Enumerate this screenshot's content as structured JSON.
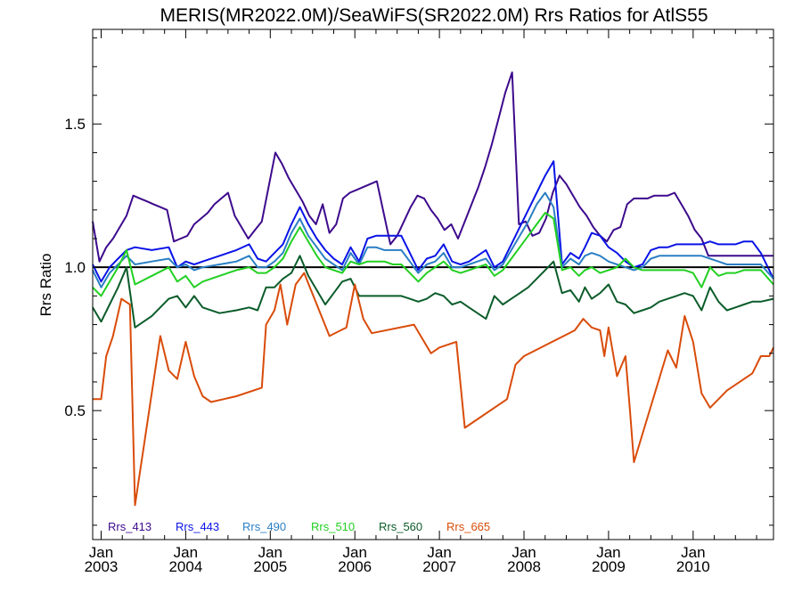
{
  "chart_data": {
    "type": "line",
    "title": "MERIS(MR2022.0M)/SeaWiFS(SR2022.0M)  Rrs Ratios for AtlS55",
    "ylabel": "Rrs Ratio",
    "xlabel": "",
    "xlim": [
      2002.9,
      2010.95
    ],
    "ylim": [
      0.05,
      1.83
    ],
    "x_ticks": [
      {
        "month": "Jan",
        "year": "2003",
        "x": 2003.0
      },
      {
        "month": "Jan",
        "year": "2004",
        "x": 2004.0
      },
      {
        "month": "Jan",
        "year": "2005",
        "x": 2005.0
      },
      {
        "month": "Jan",
        "year": "2006",
        "x": 2006.0
      },
      {
        "month": "Jan",
        "year": "2007",
        "x": 2007.0
      },
      {
        "month": "Jan",
        "year": "2008",
        "x": 2008.0
      },
      {
        "month": "Jan",
        "year": "2009",
        "x": 2009.0
      },
      {
        "month": "Jan",
        "year": "2010",
        "x": 2010.0
      }
    ],
    "y_ticks": [
      {
        "label": "0.5",
        "value": 0.5
      },
      {
        "label": "1.0",
        "value": 1.0
      },
      {
        "label": "1.5",
        "value": 1.5
      }
    ],
    "reference_line": {
      "value": 1.0,
      "color": "#000000"
    },
    "legend_placement": "bottom-left",
    "grid": false,
    "series": [
      {
        "name": "Rrs_413",
        "color": "#3d0a8c",
        "x": [
          2002.9,
          2002.98,
          2003.06,
          2003.14,
          2003.22,
          2003.3,
          2003.38,
          2003.46,
          2003.54,
          2003.62,
          2003.7,
          2003.78,
          2003.86,
          2003.94,
          2004.02,
          2004.1,
          2004.18,
          2004.26,
          2004.34,
          2004.42,
          2004.5,
          2004.58,
          2004.66,
          2004.74,
          2004.82,
          2004.9,
          2004.98,
          2005.06,
          2005.14,
          2005.22,
          2005.3,
          2005.38,
          2005.46,
          2005.54,
          2005.62,
          2005.7,
          2005.78,
          2005.86,
          2005.94,
          2006.02,
          2006.1,
          2006.18,
          2006.26,
          2006.34,
          2006.42,
          2006.5,
          2006.58,
          2006.66,
          2006.74,
          2006.82,
          2006.9,
          2006.98,
          2007.06,
          2007.14,
          2007.22,
          2007.3,
          2007.38,
          2007.46,
          2007.54,
          2007.62,
          2007.7,
          2007.78,
          2007.86,
          2007.94,
          2008.02,
          2008.1,
          2008.18,
          2008.26,
          2008.34,
          2008.42,
          2008.5,
          2008.58,
          2008.66,
          2008.74,
          2008.82,
          2008.9,
          2008.98,
          2009.06,
          2009.14,
          2009.22,
          2009.3,
          2009.38,
          2009.46,
          2009.54,
          2009.62,
          2009.7,
          2009.78,
          2009.86,
          2009.94,
          2010.02,
          2010.1,
          2010.18,
          2010.26,
          2010.34,
          2010.42,
          2010.5,
          2010.58,
          2010.66,
          2010.74,
          2010.82,
          2010.9,
          2010.95
        ],
        "values": [
          1.16,
          1.02,
          1.07,
          1.1,
          1.14,
          1.18,
          1.25,
          1.24,
          1.23,
          1.22,
          1.21,
          1.2,
          1.09,
          1.1,
          1.11,
          1.15,
          1.17,
          1.19,
          1.22,
          1.24,
          1.26,
          1.18,
          1.14,
          1.1,
          1.13,
          1.16,
          1.28,
          1.4,
          1.36,
          1.31,
          1.27,
          1.23,
          1.18,
          1.15,
          1.22,
          1.12,
          1.15,
          1.24,
          1.26,
          1.27,
          1.28,
          1.29,
          1.3,
          1.19,
          1.08,
          1.11,
          1.16,
          1.21,
          1.25,
          1.24,
          1.2,
          1.17,
          1.13,
          1.15,
          1.1,
          1.16,
          1.22,
          1.28,
          1.35,
          1.43,
          1.52,
          1.61,
          1.68,
          1.15,
          1.16,
          1.11,
          1.12,
          1.17,
          1.26,
          1.32,
          1.29,
          1.25,
          1.21,
          1.18,
          1.14,
          1.11,
          1.09,
          1.13,
          1.14,
          1.22,
          1.24,
          1.24,
          1.24,
          1.25,
          1.25,
          1.25,
          1.26,
          1.22,
          1.18,
          1.13,
          1.1,
          1.04,
          1.04,
          1.04,
          1.04,
          1.04,
          1.04,
          1.04,
          1.04,
          1.04,
          1.04,
          1.04
        ]
      },
      {
        "name": "Rrs_443",
        "color": "#0a14e6",
        "x": [
          2002.9,
          2003.0,
          2003.1,
          2003.2,
          2003.3,
          2003.4,
          2003.6,
          2003.8,
          2003.9,
          2004.0,
          2004.1,
          2004.2,
          2004.4,
          2004.6,
          2004.75,
          2004.85,
          2004.95,
          2005.05,
          2005.15,
          2005.25,
          2005.35,
          2005.45,
          2005.55,
          2005.65,
          2005.75,
          2005.85,
          2005.95,
          2006.05,
          2006.15,
          2006.25,
          2006.35,
          2006.45,
          2006.55,
          2006.65,
          2006.75,
          2006.85,
          2006.95,
          2007.05,
          2007.15,
          2007.25,
          2007.35,
          2007.45,
          2007.55,
          2007.65,
          2007.75,
          2007.85,
          2007.95,
          2008.05,
          2008.15,
          2008.25,
          2008.35,
          2008.45,
          2008.55,
          2008.65,
          2008.72,
          2008.8,
          2008.9,
          2009.0,
          2009.1,
          2009.2,
          2009.3,
          2009.4,
          2009.5,
          2009.6,
          2009.7,
          2009.8,
          2009.9,
          2010.0,
          2010.1,
          2010.2,
          2010.3,
          2010.4,
          2010.5,
          2010.6,
          2010.7,
          2010.8,
          2010.95
        ],
        "values": [
          1.01,
          0.95,
          1.0,
          1.03,
          1.06,
          1.07,
          1.06,
          1.07,
          1.0,
          1.02,
          1.01,
          1.02,
          1.04,
          1.06,
          1.08,
          1.03,
          1.02,
          1.05,
          1.08,
          1.15,
          1.21,
          1.15,
          1.1,
          1.06,
          1.03,
          1.01,
          1.07,
          1.02,
          1.1,
          1.11,
          1.11,
          1.11,
          1.11,
          1.05,
          0.99,
          1.03,
          1.04,
          1.08,
          1.02,
          1.01,
          1.02,
          1.04,
          1.06,
          1.0,
          1.02,
          1.08,
          1.14,
          1.2,
          1.26,
          1.32,
          1.37,
          1.01,
          1.05,
          1.03,
          1.07,
          1.12,
          1.11,
          1.07,
          1.05,
          1.02,
          1.0,
          1.01,
          1.06,
          1.07,
          1.07,
          1.08,
          1.08,
          1.08,
          1.08,
          1.09,
          1.08,
          1.08,
          1.08,
          1.09,
          1.09,
          1.05,
          0.96
        ]
      },
      {
        "name": "Rrs_490",
        "color": "#2b7fc4",
        "x": [
          2002.9,
          2003.0,
          2003.1,
          2003.2,
          2003.3,
          2003.4,
          2003.6,
          2003.8,
          2003.9,
          2004.0,
          2004.1,
          2004.2,
          2004.4,
          2004.6,
          2004.75,
          2004.85,
          2004.95,
          2005.05,
          2005.15,
          2005.25,
          2005.35,
          2005.45,
          2005.55,
          2005.65,
          2005.75,
          2005.85,
          2005.95,
          2006.05,
          2006.15,
          2006.25,
          2006.35,
          2006.45,
          2006.55,
          2006.65,
          2006.75,
          2006.85,
          2006.95,
          2007.05,
          2007.15,
          2007.25,
          2007.35,
          2007.45,
          2007.55,
          2007.65,
          2007.75,
          2007.85,
          2007.95,
          2008.05,
          2008.15,
          2008.25,
          2008.35,
          2008.45,
          2008.55,
          2008.65,
          2008.72,
          2008.8,
          2008.9,
          2009.0,
          2009.1,
          2009.2,
          2009.3,
          2009.4,
          2009.5,
          2009.6,
          2009.7,
          2009.8,
          2009.9,
          2010.0,
          2010.1,
          2010.2,
          2010.3,
          2010.4,
          2010.5,
          2010.6,
          2010.7,
          2010.8,
          2010.95
        ],
        "values": [
          0.99,
          0.93,
          0.98,
          1.01,
          1.04,
          1.01,
          1.02,
          1.03,
          1.0,
          1.01,
          0.99,
          1.0,
          1.01,
          1.02,
          1.04,
          1.0,
          1.0,
          1.02,
          1.05,
          1.12,
          1.17,
          1.11,
          1.07,
          1.03,
          1.01,
          0.99,
          1.05,
          1.01,
          1.07,
          1.07,
          1.06,
          1.06,
          1.06,
          1.02,
          0.98,
          1.01,
          1.02,
          1.05,
          1.0,
          1.0,
          1.01,
          1.02,
          1.03,
          0.99,
          1.01,
          1.06,
          1.11,
          1.16,
          1.22,
          1.26,
          1.21,
          1.0,
          1.03,
          1.01,
          1.04,
          1.05,
          1.04,
          1.02,
          1.01,
          1.0,
          0.99,
          1.0,
          1.03,
          1.04,
          1.04,
          1.04,
          1.04,
          1.04,
          1.04,
          1.03,
          1.02,
          1.01,
          1.01,
          1.01,
          1.01,
          1.01,
          0.96
        ]
      },
      {
        "name": "Rrs_510",
        "color": "#22d022",
        "x": [
          2002.9,
          2003.0,
          2003.1,
          2003.2,
          2003.3,
          2003.4,
          2003.6,
          2003.8,
          2003.9,
          2004.0,
          2004.1,
          2004.2,
          2004.4,
          2004.6,
          2004.75,
          2004.85,
          2004.95,
          2005.05,
          2005.15,
          2005.25,
          2005.35,
          2005.45,
          2005.55,
          2005.65,
          2005.75,
          2005.85,
          2005.95,
          2006.05,
          2006.15,
          2006.25,
          2006.35,
          2006.45,
          2006.55,
          2006.65,
          2006.75,
          2006.85,
          2006.95,
          2007.05,
          2007.15,
          2007.25,
          2007.35,
          2007.45,
          2007.55,
          2007.65,
          2007.75,
          2007.85,
          2007.95,
          2008.05,
          2008.15,
          2008.25,
          2008.35,
          2008.45,
          2008.55,
          2008.65,
          2008.72,
          2008.8,
          2008.9,
          2009.0,
          2009.1,
          2009.2,
          2009.3,
          2009.4,
          2009.5,
          2009.6,
          2009.7,
          2009.8,
          2009.9,
          2010.0,
          2010.1,
          2010.2,
          2010.3,
          2010.4,
          2010.5,
          2010.6,
          2010.7,
          2010.8,
          2010.95
        ],
        "values": [
          0.93,
          0.9,
          0.95,
          1.0,
          1.06,
          0.94,
          0.97,
          1.0,
          0.95,
          0.97,
          0.93,
          0.95,
          0.97,
          0.99,
          1.0,
          0.98,
          0.98,
          1.0,
          1.03,
          1.09,
          1.14,
          1.09,
          1.04,
          1.0,
          0.99,
          0.98,
          1.02,
          1.01,
          1.02,
          1.02,
          1.02,
          1.01,
          1.01,
          0.98,
          0.95,
          0.98,
          1.0,
          1.02,
          0.99,
          0.98,
          0.99,
          1.0,
          1.01,
          0.97,
          0.99,
          1.03,
          1.07,
          1.11,
          1.15,
          1.19,
          1.17,
          0.99,
          1.0,
          0.97,
          0.99,
          1.0,
          0.98,
          0.99,
          1.0,
          1.03,
          1.0,
          0.99,
          0.99,
          0.99,
          0.99,
          0.99,
          0.99,
          0.98,
          0.93,
          1.0,
          0.97,
          0.98,
          0.98,
          0.99,
          0.99,
          0.99,
          0.94
        ]
      },
      {
        "name": "Rrs_560",
        "color": "#0b5c2a",
        "x": [
          2002.9,
          2003.0,
          2003.1,
          2003.2,
          2003.3,
          2003.4,
          2003.6,
          2003.8,
          2003.9,
          2004.0,
          2004.1,
          2004.2,
          2004.4,
          2004.6,
          2004.75,
          2004.85,
          2004.95,
          2005.05,
          2005.15,
          2005.25,
          2005.35,
          2005.45,
          2005.55,
          2005.65,
          2005.75,
          2005.85,
          2005.95,
          2006.05,
          2006.15,
          2006.25,
          2006.35,
          2006.45,
          2006.55,
          2006.65,
          2006.75,
          2006.85,
          2006.95,
          2007.05,
          2007.15,
          2007.25,
          2007.35,
          2007.45,
          2007.55,
          2007.65,
          2007.75,
          2007.85,
          2007.95,
          2008.05,
          2008.15,
          2008.25,
          2008.35,
          2008.45,
          2008.55,
          2008.65,
          2008.72,
          2008.8,
          2008.9,
          2009.0,
          2009.1,
          2009.2,
          2009.3,
          2009.4,
          2009.5,
          2009.6,
          2009.7,
          2009.8,
          2009.9,
          2010.0,
          2010.1,
          2010.2,
          2010.3,
          2010.4,
          2010.5,
          2010.6,
          2010.7,
          2010.8,
          2010.95
        ],
        "values": [
          0.86,
          0.81,
          0.87,
          0.93,
          1.0,
          0.79,
          0.83,
          0.89,
          0.9,
          0.86,
          0.9,
          0.86,
          0.84,
          0.85,
          0.86,
          0.85,
          0.93,
          0.93,
          0.96,
          0.98,
          1.04,
          0.97,
          0.92,
          0.87,
          0.91,
          0.95,
          0.96,
          0.9,
          0.9,
          0.9,
          0.9,
          0.9,
          0.9,
          0.89,
          0.88,
          0.89,
          0.91,
          0.9,
          0.87,
          0.88,
          0.86,
          0.84,
          0.82,
          0.9,
          0.87,
          0.89,
          0.91,
          0.93,
          0.96,
          0.99,
          1.02,
          0.91,
          0.92,
          0.88,
          0.93,
          0.89,
          0.91,
          0.94,
          0.88,
          0.87,
          0.84,
          0.85,
          0.86,
          0.88,
          0.89,
          0.9,
          0.91,
          0.9,
          0.85,
          0.93,
          0.88,
          0.85,
          0.86,
          0.87,
          0.88,
          0.88,
          0.89
        ]
      },
      {
        "name": "Rrs_665",
        "color": "#d94c0a",
        "x": [
          2002.9,
          2003.0,
          2003.06,
          2003.14,
          2003.24,
          2003.34,
          2003.4,
          2003.7,
          2003.8,
          2003.9,
          2004.0,
          2004.1,
          2004.2,
          2004.3,
          2004.6,
          2004.9,
          2004.95,
          2005.05,
          2005.12,
          2005.2,
          2005.3,
          2005.4,
          2005.7,
          2005.9,
          2006.0,
          2006.1,
          2006.2,
          2006.7,
          2006.9,
          2007.0,
          2007.2,
          2007.3,
          2007.8,
          2007.9,
          2008.0,
          2008.6,
          2008.7,
          2008.8,
          2008.9,
          2008.95,
          2009.0,
          2009.1,
          2009.2,
          2009.25,
          2009.3,
          2009.7,
          2009.8,
          2009.9,
          2010.0,
          2010.1,
          2010.2,
          2010.3,
          2010.4,
          2010.7,
          2010.8,
          2010.9,
          2010.95
        ],
        "values": [
          0.54,
          0.54,
          0.69,
          0.76,
          0.89,
          0.87,
          0.17,
          0.76,
          0.64,
          0.61,
          0.74,
          0.62,
          0.55,
          0.53,
          0.55,
          0.58,
          0.8,
          0.85,
          0.94,
          0.8,
          0.94,
          0.98,
          0.76,
          0.79,
          0.94,
          0.82,
          0.77,
          0.8,
          0.7,
          0.72,
          0.74,
          0.44,
          0.54,
          0.66,
          0.69,
          0.78,
          0.82,
          0.79,
          0.78,
          0.69,
          0.79,
          0.62,
          0.69,
          0.51,
          0.32,
          0.71,
          0.65,
          0.83,
          0.74,
          0.56,
          0.51,
          0.54,
          0.57,
          0.63,
          0.69,
          0.69,
          0.72
        ]
      }
    ]
  }
}
